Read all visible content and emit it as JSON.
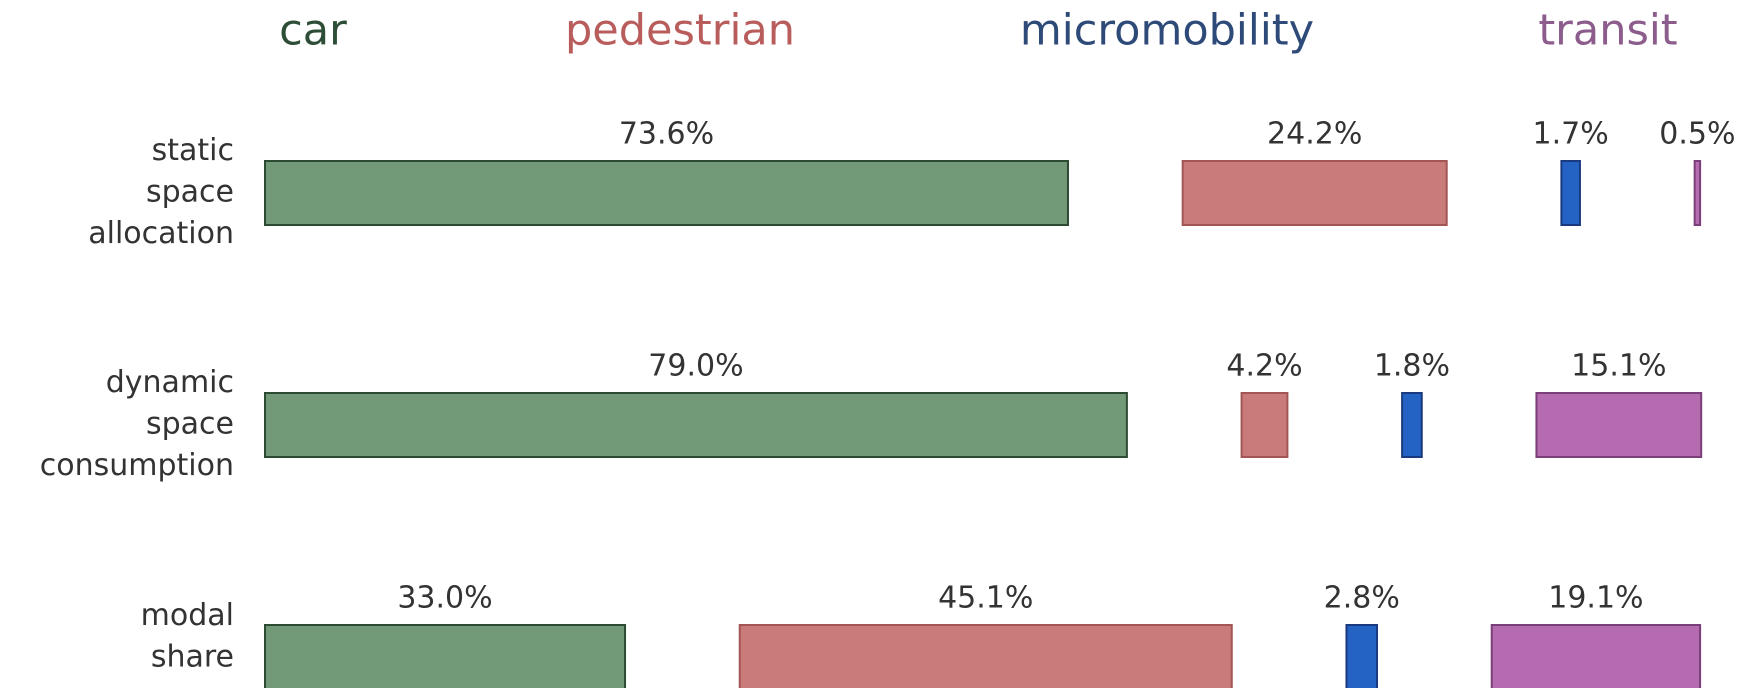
{
  "chart_data": {
    "type": "bar",
    "categories": [
      [
        "static",
        "space",
        "allocation"
      ],
      [
        "dynamic",
        "space",
        "consumption"
      ],
      [
        "modal",
        "share"
      ]
    ],
    "series": [
      {
        "name": "car",
        "color": "#739a78",
        "stroke": "#2d4a33",
        "label_color": "#2e4d36",
        "values": [
          73.6,
          79.0,
          33.0
        ],
        "value_labels": [
          "73.6%",
          "79.0%",
          "33.0%"
        ]
      },
      {
        "name": "pedestrian",
        "color": "#c97b7a",
        "stroke": "#a35454",
        "label_color": "#b85c5c",
        "values": [
          24.2,
          4.2,
          45.1
        ],
        "value_labels": [
          "24.2%",
          "4.2%",
          "45.1%"
        ]
      },
      {
        "name": "micromobility",
        "color": "#2463c4",
        "stroke": "#1a3a80",
        "label_color": "#2e4a78",
        "values": [
          1.7,
          1.8,
          2.8
        ],
        "value_labels": [
          "1.7%",
          "1.8%",
          "2.8%"
        ]
      },
      {
        "name": "transit",
        "color": "#b56bb0",
        "stroke": "#7a3f78",
        "label_color": "#8c5c8c",
        "values": [
          0.5,
          15.1,
          19.1
        ],
        "value_labels": [
          "0.5%",
          "15.1%",
          "19.1%"
        ]
      }
    ]
  }
}
